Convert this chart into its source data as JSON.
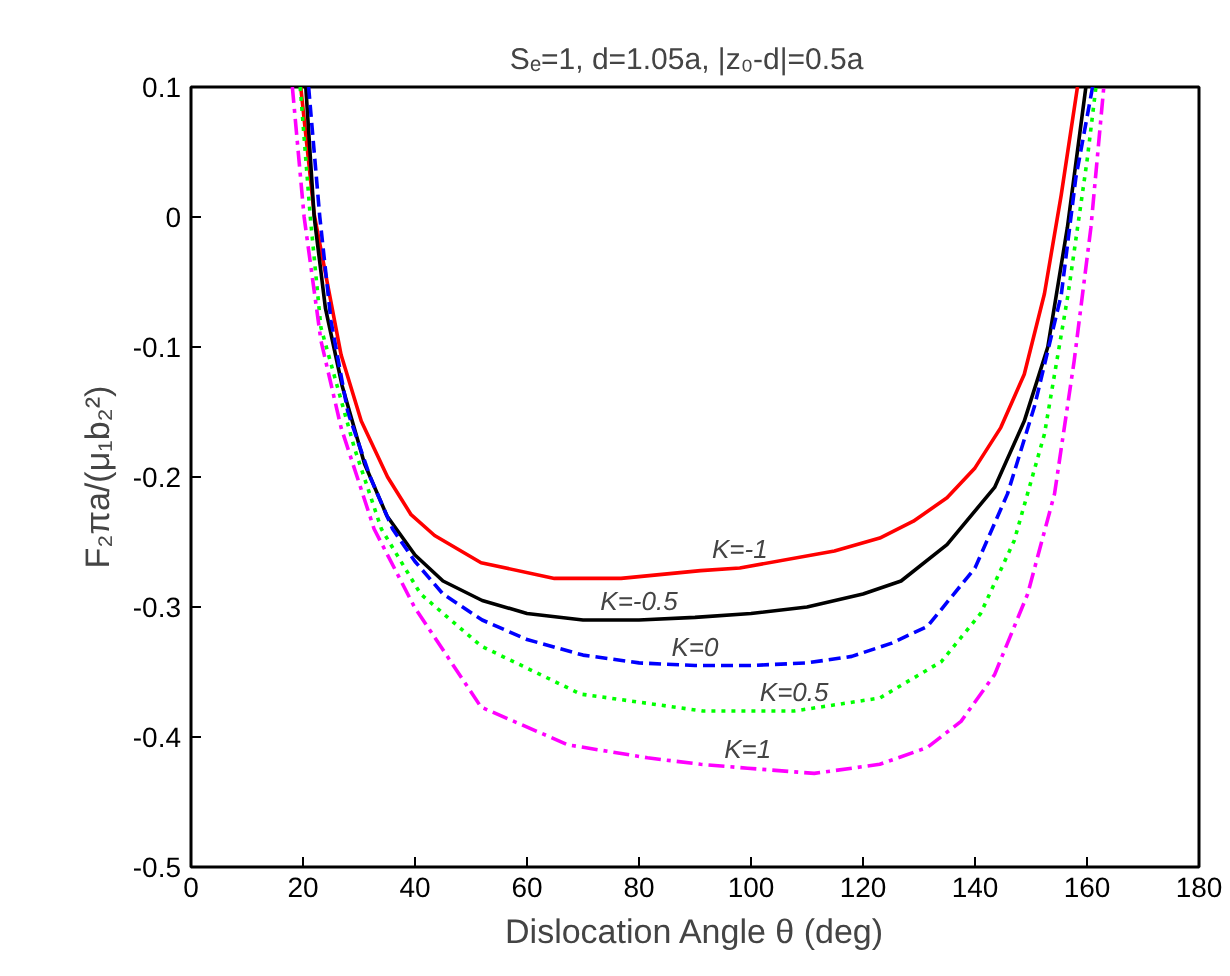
{
  "chart_data": {
    "type": "line",
    "title": "Sₑ=1,  d=1.05a,  |z₀-d|=0.5a",
    "xlabel": "Dislocation Angle θ (deg)",
    "ylabel": "F₂πa/(μ₁b₂²)",
    "xlim": [
      0,
      180
    ],
    "ylim": [
      -0.5,
      0.1
    ],
    "xticks": [
      0,
      20,
      40,
      60,
      80,
      100,
      120,
      140,
      160,
      180
    ],
    "yticks": [
      -0.5,
      -0.4,
      -0.3,
      -0.2,
      -0.1,
      0,
      0.1
    ],
    "grid": false,
    "series": [
      {
        "name": "K=-1",
        "color": "#ff0000",
        "line_style": "solid",
        "x": [
          19.6,
          22,
          26.8,
          30.4,
          35.1,
          39.3,
          43.5,
          51.8,
          64.9,
          76.8,
          91,
          98,
          114.9,
          123,
          129,
          135,
          140,
          144.6,
          148.8,
          152.4,
          155.4,
          158.3
        ],
        "values": [
          0.1,
          0.002,
          -0.106,
          -0.157,
          -0.2,
          -0.229,
          -0.245,
          -0.266,
          -0.278,
          -0.278,
          -0.272,
          -0.27,
          -0.257,
          -0.247,
          -0.234,
          -0.216,
          -0.193,
          -0.162,
          -0.121,
          -0.059,
          0.017,
          0.1
        ]
      },
      {
        "name": "K=-0.5",
        "color": "#000000",
        "line_style": "solid",
        "x": [
          20.5,
          22,
          24,
          27,
          31,
          35,
          40,
          45,
          52,
          60,
          70,
          80,
          90,
          100,
          110,
          120,
          126.8,
          135,
          143.5,
          148.8,
          153,
          156.5,
          159.8
        ],
        "values": [
          0.1,
          0.0,
          -0.07,
          -0.13,
          -0.19,
          -0.23,
          -0.26,
          -0.28,
          -0.295,
          -0.305,
          -0.31,
          -0.31,
          -0.308,
          -0.305,
          -0.3,
          -0.29,
          -0.28,
          -0.252,
          -0.208,
          -0.157,
          -0.1,
          -0.008,
          0.1
        ]
      },
      {
        "name": "K=0",
        "color": "#0000ff",
        "line_style": "dashed",
        "x": [
          21,
          23,
          25,
          28,
          32,
          36,
          40,
          45,
          52,
          60,
          70,
          80,
          90,
          100,
          110,
          118,
          125,
          131.5,
          140,
          145.8,
          150.6,
          155.4,
          158,
          161
        ],
        "values": [
          0.1,
          0.0,
          -0.08,
          -0.15,
          -0.2,
          -0.24,
          -0.265,
          -0.29,
          -0.31,
          -0.325,
          -0.337,
          -0.343,
          -0.345,
          -0.345,
          -0.343,
          -0.338,
          -0.328,
          -0.315,
          -0.27,
          -0.213,
          -0.146,
          -0.06,
          0.03,
          0.1
        ]
      },
      {
        "name": "K=0.5",
        "color": "#00ff00",
        "line_style": "dotted",
        "x": [
          19.5,
          21.3,
          23.2,
          29.2,
          34,
          41,
          51.8,
          69.6,
          91.4,
          107.7,
          123,
          134,
          141,
          147,
          152.4,
          156.6,
          160,
          161.6
        ],
        "values": [
          0.1,
          0.0,
          -0.085,
          -0.178,
          -0.24,
          -0.29,
          -0.33,
          -0.367,
          -0.38,
          -0.38,
          -0.37,
          -0.342,
          -0.305,
          -0.249,
          -0.167,
          -0.06,
          0.043,
          0.1
        ]
      },
      {
        "name": "K=1",
        "color": "#ff00ff",
        "line_style": "dashdot",
        "x": [
          18.1,
          20.2,
          23.2,
          26.8,
          32.7,
          39.9,
          51.8,
          67.3,
          81.5,
          91,
          99.4,
          111.3,
          123,
          131.5,
          137.5,
          143.5,
          149.4,
          154.2,
          157.7,
          160.7,
          163
        ],
        "values": [
          0.1,
          0.0,
          -0.095,
          -0.162,
          -0.24,
          -0.3,
          -0.377,
          -0.406,
          -0.416,
          -0.421,
          -0.424,
          -0.428,
          -0.421,
          -0.408,
          -0.388,
          -0.352,
          -0.29,
          -0.213,
          -0.111,
          -0.008,
          0.1
        ]
      }
    ]
  }
}
